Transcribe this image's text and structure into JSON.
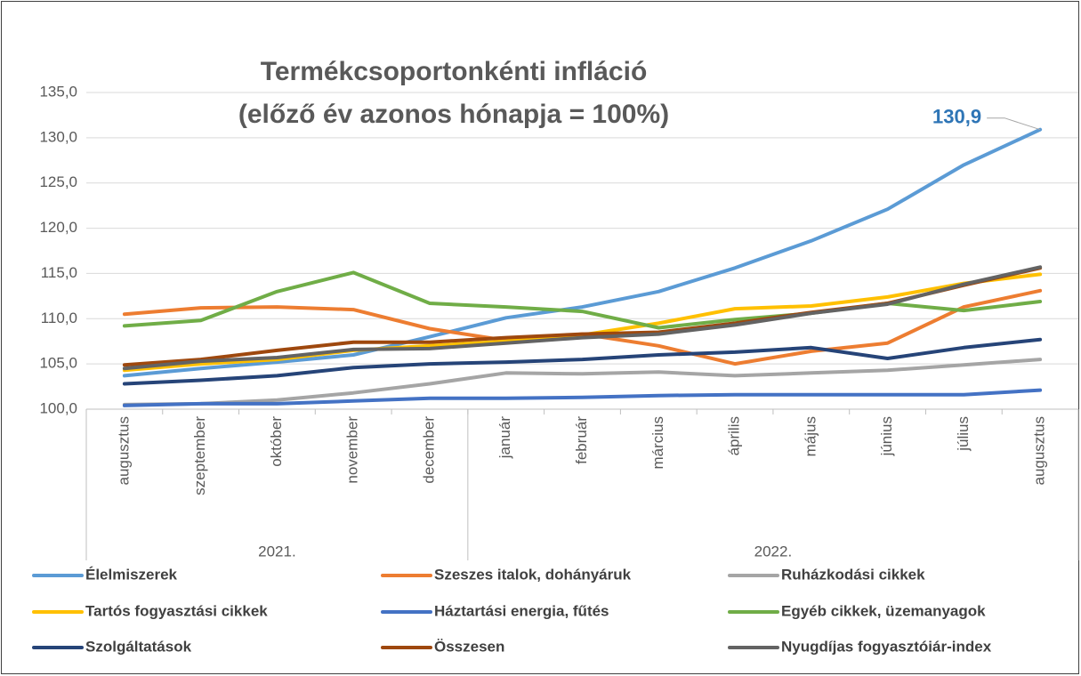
{
  "chart_data": {
    "type": "line",
    "title": [
      "Termékcsoportonkénti infláció",
      "(előző év azonos hónapja = 100%)"
    ],
    "categories": [
      "augusztus",
      "szeptember",
      "október",
      "november",
      "december",
      "január",
      "február",
      "március",
      "április",
      "május",
      "június",
      "július",
      "augusztus"
    ],
    "category_groups": [
      {
        "label": "2021.",
        "first": 0,
        "last": 4
      },
      {
        "label": "2022.",
        "first": 5,
        "last": 12
      }
    ],
    "ylim": [
      100,
      135
    ],
    "yticks": [
      {
        "value": 100,
        "label": "100,0"
      },
      {
        "value": 105,
        "label": "105,0"
      },
      {
        "value": 110,
        "label": "110,0"
      },
      {
        "value": 115,
        "label": "115,0"
      },
      {
        "value": 120,
        "label": "120,0"
      },
      {
        "value": 125,
        "label": "125,0"
      },
      {
        "value": 130,
        "label": "130,0"
      },
      {
        "value": 135,
        "label": "135,0"
      }
    ],
    "grid": true,
    "legend": "bottom",
    "series": [
      {
        "name": "Élelmiszerek",
        "color": "#5B9BD5",
        "values": [
          103.7,
          104.5,
          105.2,
          106.0,
          108.0,
          110.1,
          111.3,
          113.0,
          115.6,
          118.6,
          122.1,
          127.0,
          130.9
        ],
        "value_labels": [
          null,
          null,
          null,
          null,
          null,
          null,
          null,
          null,
          null,
          null,
          null,
          null,
          "130,9"
        ]
      },
      {
        "name": "Szeszes italok, dohányáruk",
        "color": "#ED7D31",
        "values": [
          110.5,
          111.2,
          111.3,
          111.0,
          108.9,
          107.6,
          108.3,
          107.0,
          105.0,
          106.4,
          107.3,
          111.3,
          113.1
        ]
      },
      {
        "name": "Ruházkodási cikkek",
        "color": "#A5A5A5",
        "values": [
          100.5,
          100.6,
          101.0,
          101.8,
          102.8,
          104.0,
          103.9,
          104.1,
          103.7,
          104.0,
          104.3,
          104.9,
          105.5
        ]
      },
      {
        "name": "Tartós fogyasztási cikkek",
        "color": "#FFC000",
        "values": [
          104.3,
          105.0,
          105.5,
          106.5,
          107.0,
          107.5,
          108.2,
          109.5,
          111.1,
          111.4,
          112.4,
          113.9,
          114.9
        ]
      },
      {
        "name": "Háztartási energia, fűtés",
        "color": "#4472C4",
        "values": [
          100.4,
          100.6,
          100.6,
          100.9,
          101.2,
          101.2,
          101.3,
          101.5,
          101.6,
          101.6,
          101.6,
          101.6,
          102.1
        ]
      },
      {
        "name": "Egyéb cikkek, üzemanyagok",
        "color": "#70AD47",
        "values": [
          109.2,
          109.8,
          113.0,
          115.1,
          111.7,
          111.3,
          110.8,
          109.0,
          109.9,
          110.6,
          111.7,
          110.9,
          111.9
        ]
      },
      {
        "name": "Szolgáltatások",
        "color": "#264478",
        "values": [
          102.8,
          103.2,
          103.7,
          104.6,
          105.0,
          105.2,
          105.5,
          106.0,
          106.3,
          106.8,
          105.6,
          106.8,
          107.7
        ]
      },
      {
        "name": "Összesen",
        "color": "#9E480E",
        "values": [
          104.9,
          105.5,
          106.5,
          107.4,
          107.4,
          107.9,
          108.3,
          108.5,
          109.5,
          110.7,
          111.7,
          113.7,
          115.6
        ]
      },
      {
        "name": "Nyugdíjas fogyasztóiár-index",
        "color": "#636363",
        "values": [
          104.5,
          105.3,
          105.7,
          106.6,
          106.7,
          107.3,
          107.9,
          108.3,
          109.3,
          110.6,
          111.6,
          113.8,
          115.7
        ]
      }
    ]
  }
}
